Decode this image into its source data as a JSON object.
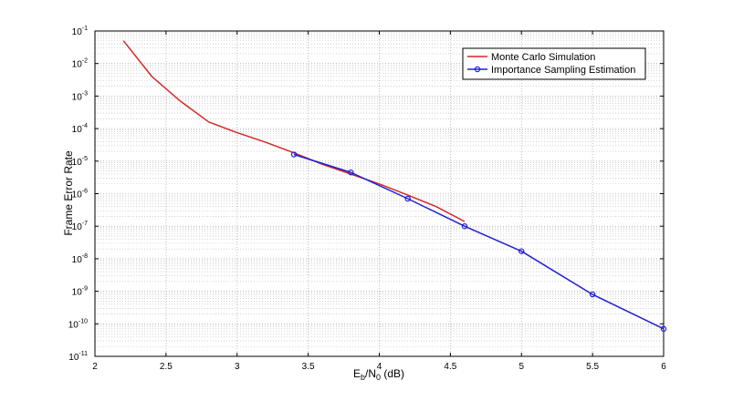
{
  "chart_data": {
    "type": "line",
    "xlabel": {
      "main": "E",
      "sub1": "b",
      "mid": "/N",
      "sub2": "0",
      "tail": " (dB)"
    },
    "ylabel": "Frame Error Rate",
    "xlim": [
      2,
      6
    ],
    "ylim_exponents": [
      -11,
      -1
    ],
    "y_scale": "log",
    "grid": true,
    "legend_placement": "top-right",
    "x_ticks": [
      "2",
      "2.5",
      "3",
      "3.5",
      "4",
      "4.5",
      "5",
      "5.5",
      "6"
    ],
    "y_ticks": [
      {
        "base": "10",
        "exp": "-1"
      },
      {
        "base": "10",
        "exp": "-2"
      },
      {
        "base": "10",
        "exp": "-3"
      },
      {
        "base": "10",
        "exp": "-4"
      },
      {
        "base": "10",
        "exp": "-5"
      },
      {
        "base": "10",
        "exp": "-6"
      },
      {
        "base": "10",
        "exp": "-7"
      },
      {
        "base": "10",
        "exp": "-8"
      },
      {
        "base": "10",
        "exp": "-9"
      },
      {
        "base": "10",
        "exp": "-10"
      },
      {
        "base": "10",
        "exp": "-11"
      }
    ],
    "series": [
      {
        "name": "Monte Carlo Simulation",
        "color": "#d62728",
        "marker": "none",
        "x": [
          2.2,
          2.4,
          2.6,
          2.8,
          3.0,
          3.2,
          3.4,
          3.6,
          3.8,
          4.0,
          4.2,
          4.4,
          4.6
        ],
        "y": [
          0.05,
          0.004,
          0.0007,
          0.00016,
          7.5e-05,
          3.8e-05,
          1.8e-05,
          8e-06,
          4e-06,
          2e-06,
          9e-07,
          4e-07,
          1.4e-07
        ]
      },
      {
        "name": "Importance Sampling Estimation",
        "color": "#1f1fd6",
        "marker": "circle",
        "x": [
          3.4,
          3.8,
          4.2,
          4.6,
          5.0,
          5.5,
          6.0
        ],
        "y": [
          1.6e-05,
          4.5e-06,
          7e-07,
          1e-07,
          1.7e-08,
          8e-10,
          7e-11
        ]
      }
    ]
  }
}
